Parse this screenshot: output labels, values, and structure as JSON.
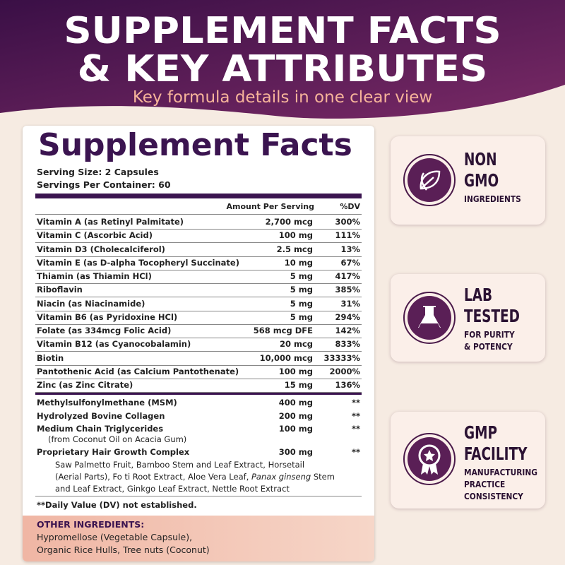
{
  "header": {
    "title_lines": [
      "SUPPLEMENT FACTS",
      "& KEY ATTRIBUTES"
    ],
    "subtitle": "Key formula details in one clear view"
  },
  "facts": {
    "title": "Supplement Facts",
    "serving_size": "Serving Size: 2 Capsules",
    "servings_per_container": "Servings Per Container: 60",
    "columns": [
      "Amount Per Serving",
      "%DV"
    ],
    "vitamins": [
      [
        "Vitamin A (as Retinyl Palmitate)",
        "2,700 mcg",
        "300%"
      ],
      [
        "Vitamin C (Ascorbic Acid)",
        "100 mg",
        "111%"
      ],
      [
        "Vitamin D3 (Cholecalciferol)",
        "2.5 mcg",
        "13%"
      ],
      [
        "Vitamin E (as D-alpha Tocopheryl Succinate)",
        "10 mg",
        "67%"
      ],
      [
        "Thiamin (as Thiamin HCl)",
        "5 mg",
        "417%"
      ],
      [
        "Riboflavin",
        "5 mg",
        "385%"
      ],
      [
        "Niacin (as Niacinamide)",
        "5 mg",
        "31%"
      ],
      [
        "Vitamin B6 (as Pyridoxine HCl)",
        "5 mg",
        "294%"
      ],
      [
        "Folate (as 334mcg Folic Acid)",
        "568 mcg DFE",
        "142%"
      ],
      [
        "Vitamin B12 (as Cyanocobalamin)",
        "20 mcg",
        "833%"
      ],
      [
        "Biotin",
        "10,000 mcg",
        "33333%"
      ],
      [
        "Pantothenic Acid (as Calcium Pantothenate)",
        "100 mg",
        "2000%"
      ],
      [
        "Zinc (as Zinc Citrate)",
        "15 mg",
        "136%"
      ]
    ],
    "others": [
      [
        "Methylsulfonylmethane (MSM)",
        "400 mg",
        "**"
      ],
      [
        "Hydrolyzed Bovine Collagen",
        "200 mg",
        "**"
      ],
      [
        "Medium Chain Triglycerides",
        "100 mg",
        "**"
      ],
      [
        "Proprietary Hair Growth Complex",
        "300 mg",
        "**"
      ]
    ],
    "mct_note": "(from Coconut Oil on Acacia Gum)",
    "complex_lines": [
      [
        "Saw Palmetto Fruit, Bamboo Stem and Leaf Extract, Horsetail"
      ],
      [
        "(Aerial Parts), Fo ti Root Extract, Aloe Vera Leaf, ",
        "Panax ginseng",
        " Stem"
      ],
      [
        "and Leaf Extract, Ginkgo Leaf Extract, Nettle Root Extract"
      ]
    ],
    "footnote": "**Daily Value (DV) not established.",
    "other_ingredients": {
      "heading": "OTHER INGREDIENTS:",
      "lines": [
        "Hypromellose (Vegetable Capsule),",
        "Organic Rice Hulls, Tree nuts (Coconut)"
      ]
    }
  },
  "badges": [
    {
      "big": [
        "NON",
        "GMO"
      ],
      "small": [
        "INGREDIENTS"
      ]
    },
    {
      "big": [
        "LAB",
        "TESTED"
      ],
      "small": [
        "FOR PURITY",
        "& POTENCY"
      ]
    },
    {
      "big": [
        "GMP",
        "FACILITY"
      ],
      "small": [
        "MANUFACTURING",
        "PRACTICE",
        "CONSISTENCY"
      ]
    }
  ]
}
